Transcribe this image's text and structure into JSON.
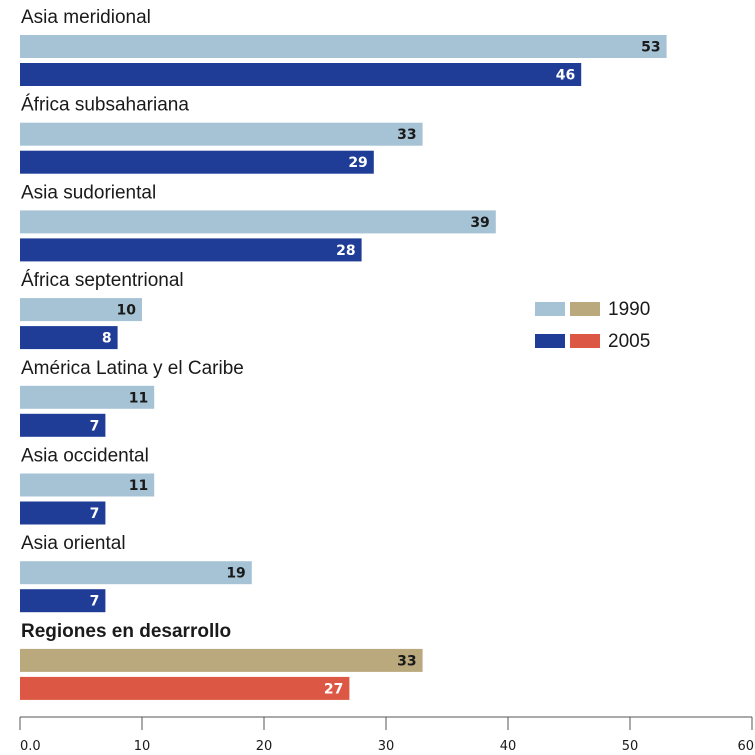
{
  "chart_data": {
    "type": "bar",
    "orientation": "horizontal",
    "categories": [
      "Asia meridional",
      "África subsahariana",
      "Asia sudoriental",
      "África septentrional",
      "América Latina y el Caribe",
      "Asia occidental",
      "Asia oriental",
      "Regiones en desarrollo"
    ],
    "highlight_category": "Regiones en desarrollo",
    "series": [
      {
        "name": "1990",
        "values": [
          53,
          33,
          39,
          10,
          11,
          11,
          19,
          33
        ],
        "color": "#a6c3d6",
        "highlight_color": "#bba97e",
        "label_color": "#1a1a1a",
        "highlight_label_color": "#1a1a1a"
      },
      {
        "name": "2005",
        "values": [
          46,
          29,
          28,
          8,
          7,
          7,
          7,
          27
        ],
        "color": "#1f3d96",
        "highlight_color": "#dd5745",
        "label_color": "#ffffff",
        "highlight_label_color": "#ffffff"
      }
    ],
    "value_labels": {
      "1990": [
        "53",
        "33",
        "39",
        "10",
        "11",
        "11",
        "19",
        "33"
      ],
      "2005": [
        "46",
        "29",
        "28",
        "8",
        "7",
        "7",
        "7",
        "27"
      ]
    },
    "xlim": [
      0,
      60
    ],
    "x_ticks": [
      0,
      10,
      20,
      30,
      40,
      50,
      60
    ],
    "x_tick_labels": [
      "0.0",
      "10",
      "20",
      "30",
      "40",
      "50",
      "60"
    ],
    "legend": {
      "placement": "right",
      "entries": [
        {
          "label": "1990",
          "colors": [
            "#a6c3d6",
            "#bba97e"
          ]
        },
        {
          "label": "2005",
          "colors": [
            "#1f3d96",
            "#dd5745"
          ]
        }
      ]
    },
    "axis_color": "#555555",
    "text_color": "#1a1a1a",
    "grid": false,
    "title": "",
    "xlabel": "",
    "ylabel": ""
  }
}
